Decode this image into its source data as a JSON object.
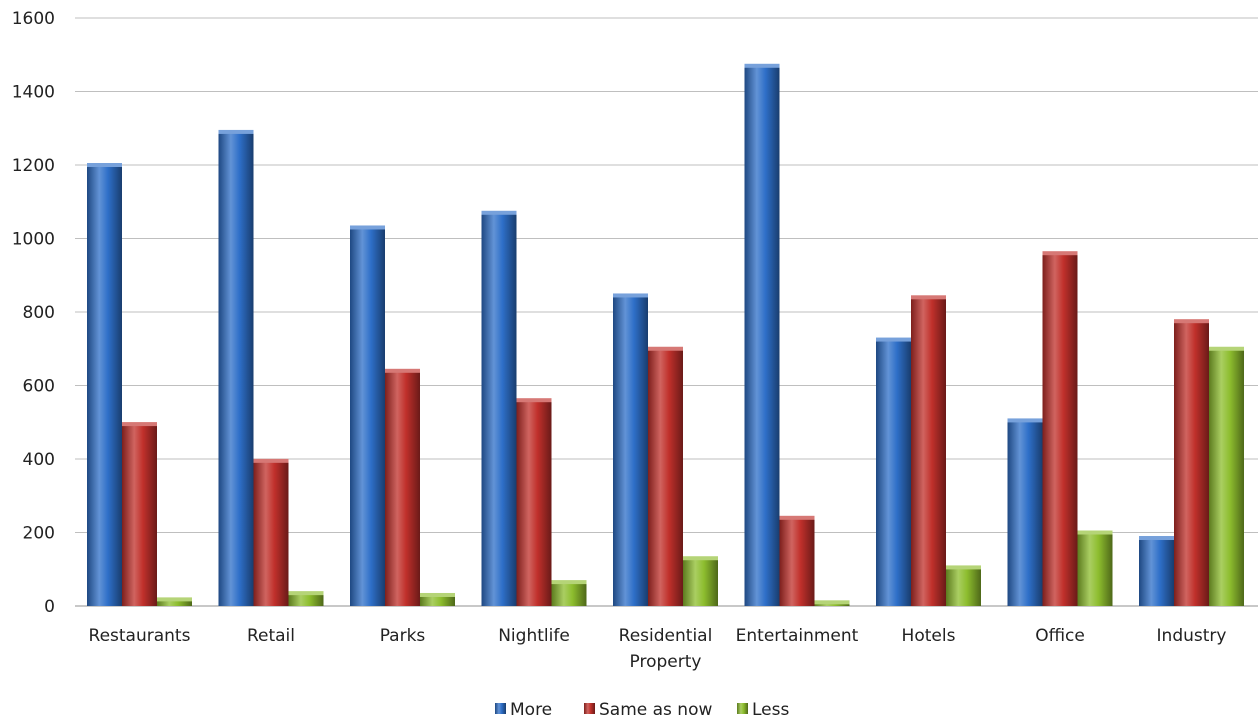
{
  "chart_data": {
    "type": "bar",
    "title": "",
    "xlabel": "",
    "ylabel": "",
    "categories": [
      [
        "Restaurants"
      ],
      [
        "Retail"
      ],
      [
        "Parks"
      ],
      [
        "Nightlife"
      ],
      [
        "Residential",
        "Property"
      ],
      [
        "Entertainment"
      ],
      [
        "Hotels"
      ],
      [
        "Office"
      ],
      [
        "Industry"
      ]
    ],
    "series": [
      {
        "name": "More",
        "color": "#2e6fc8",
        "values": [
          1200,
          1290,
          1030,
          1070,
          845,
          1470,
          725,
          505,
          185
        ]
      },
      {
        "name": "Same as now",
        "color": "#c0302b",
        "values": [
          495,
          395,
          640,
          560,
          700,
          240,
          840,
          960,
          775
        ]
      },
      {
        "name": "Less",
        "color": "#8dbd2e",
        "values": [
          18,
          35,
          30,
          65,
          130,
          10,
          105,
          200,
          700
        ]
      }
    ],
    "ylim": [
      0,
      1600
    ],
    "yticks": [
      0,
      200,
      400,
      600,
      800,
      1000,
      1200,
      1400,
      1600
    ],
    "grid": true,
    "legend_position": "bottom"
  }
}
